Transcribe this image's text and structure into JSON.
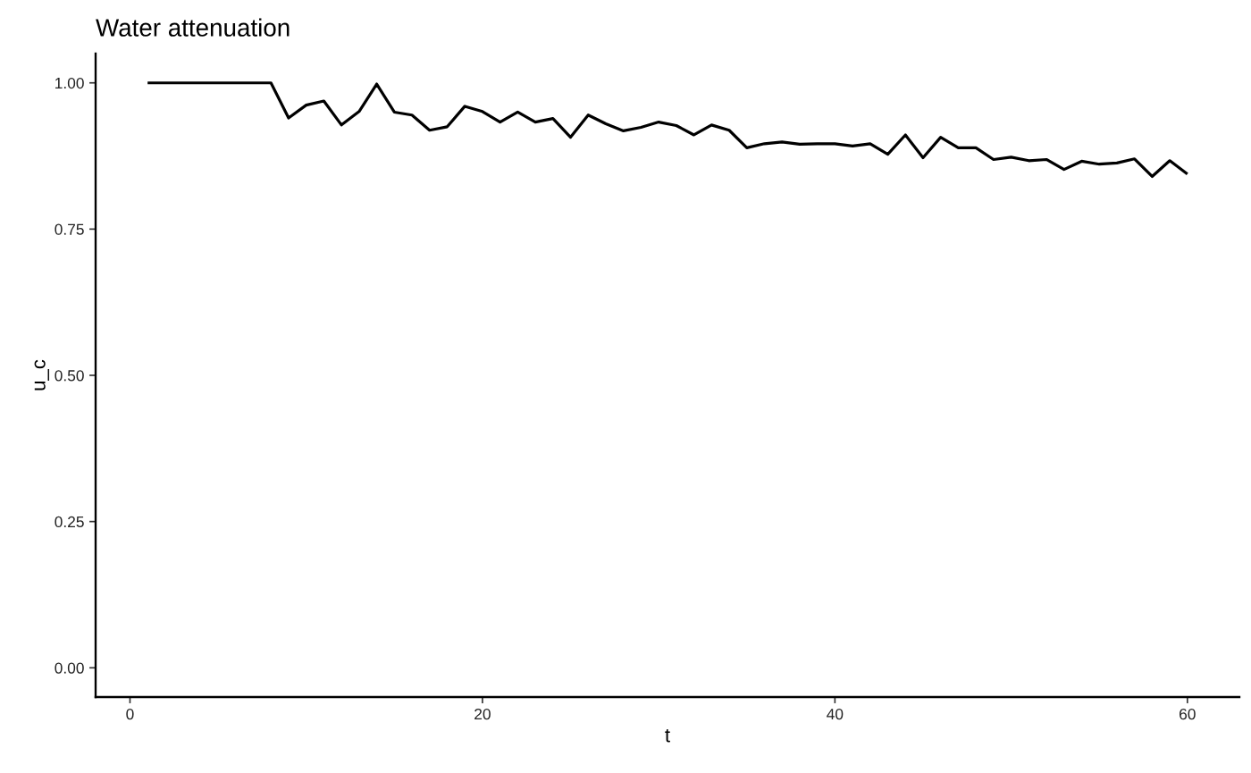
{
  "chart_data": {
    "type": "line",
    "title": "Water attenuation",
    "xlabel": "t",
    "ylabel": "u_c",
    "x": [
      1,
      2,
      3,
      4,
      5,
      6,
      7,
      8,
      9,
      10,
      11,
      12,
      13,
      14,
      15,
      16,
      17,
      18,
      19,
      20,
      21,
      22,
      23,
      24,
      25,
      26,
      27,
      28,
      29,
      30,
      31,
      32,
      33,
      34,
      35,
      36,
      37,
      38,
      39,
      40,
      41,
      42,
      43,
      44,
      45,
      46,
      47,
      48,
      49,
      50,
      51,
      52,
      53,
      54,
      55,
      56,
      57,
      58,
      59,
      60
    ],
    "series": [
      {
        "color": "#000000",
        "values": [
          1.0,
          1.0,
          1.0,
          1.0,
          1.0,
          1.0,
          1.0,
          1.0,
          0.94,
          0.962,
          0.969,
          0.928,
          0.951,
          0.998,
          0.95,
          0.945,
          0.919,
          0.925,
          0.96,
          0.951,
          0.933,
          0.95,
          0.933,
          0.939,
          0.907,
          0.945,
          0.93,
          0.918,
          0.924,
          0.933,
          0.927,
          0.911,
          0.928,
          0.919,
          0.889,
          0.896,
          0.899,
          0.895,
          0.896,
          0.896,
          0.892,
          0.896,
          0.878,
          0.911,
          0.872,
          0.907,
          0.889,
          0.889,
          0.869,
          0.873,
          0.867,
          0.869,
          0.852,
          0.866,
          0.861,
          0.863,
          0.87,
          0.84,
          0.867,
          0.844
        ]
      }
    ],
    "xlim": [
      -1.95,
      62.95
    ],
    "ylim": [
      -0.05,
      1.05
    ],
    "xticks": [
      0,
      20,
      40,
      60
    ],
    "yticks": [
      {
        "value": 0,
        "label": "0.00"
      },
      {
        "value": 0.25,
        "label": "0.25"
      },
      {
        "value": 0.5,
        "label": "0.50"
      },
      {
        "value": 0.75,
        "label": "0.75"
      },
      {
        "value": 1,
        "label": "1.00"
      }
    ],
    "marker": "none",
    "line_style": "solid"
  }
}
